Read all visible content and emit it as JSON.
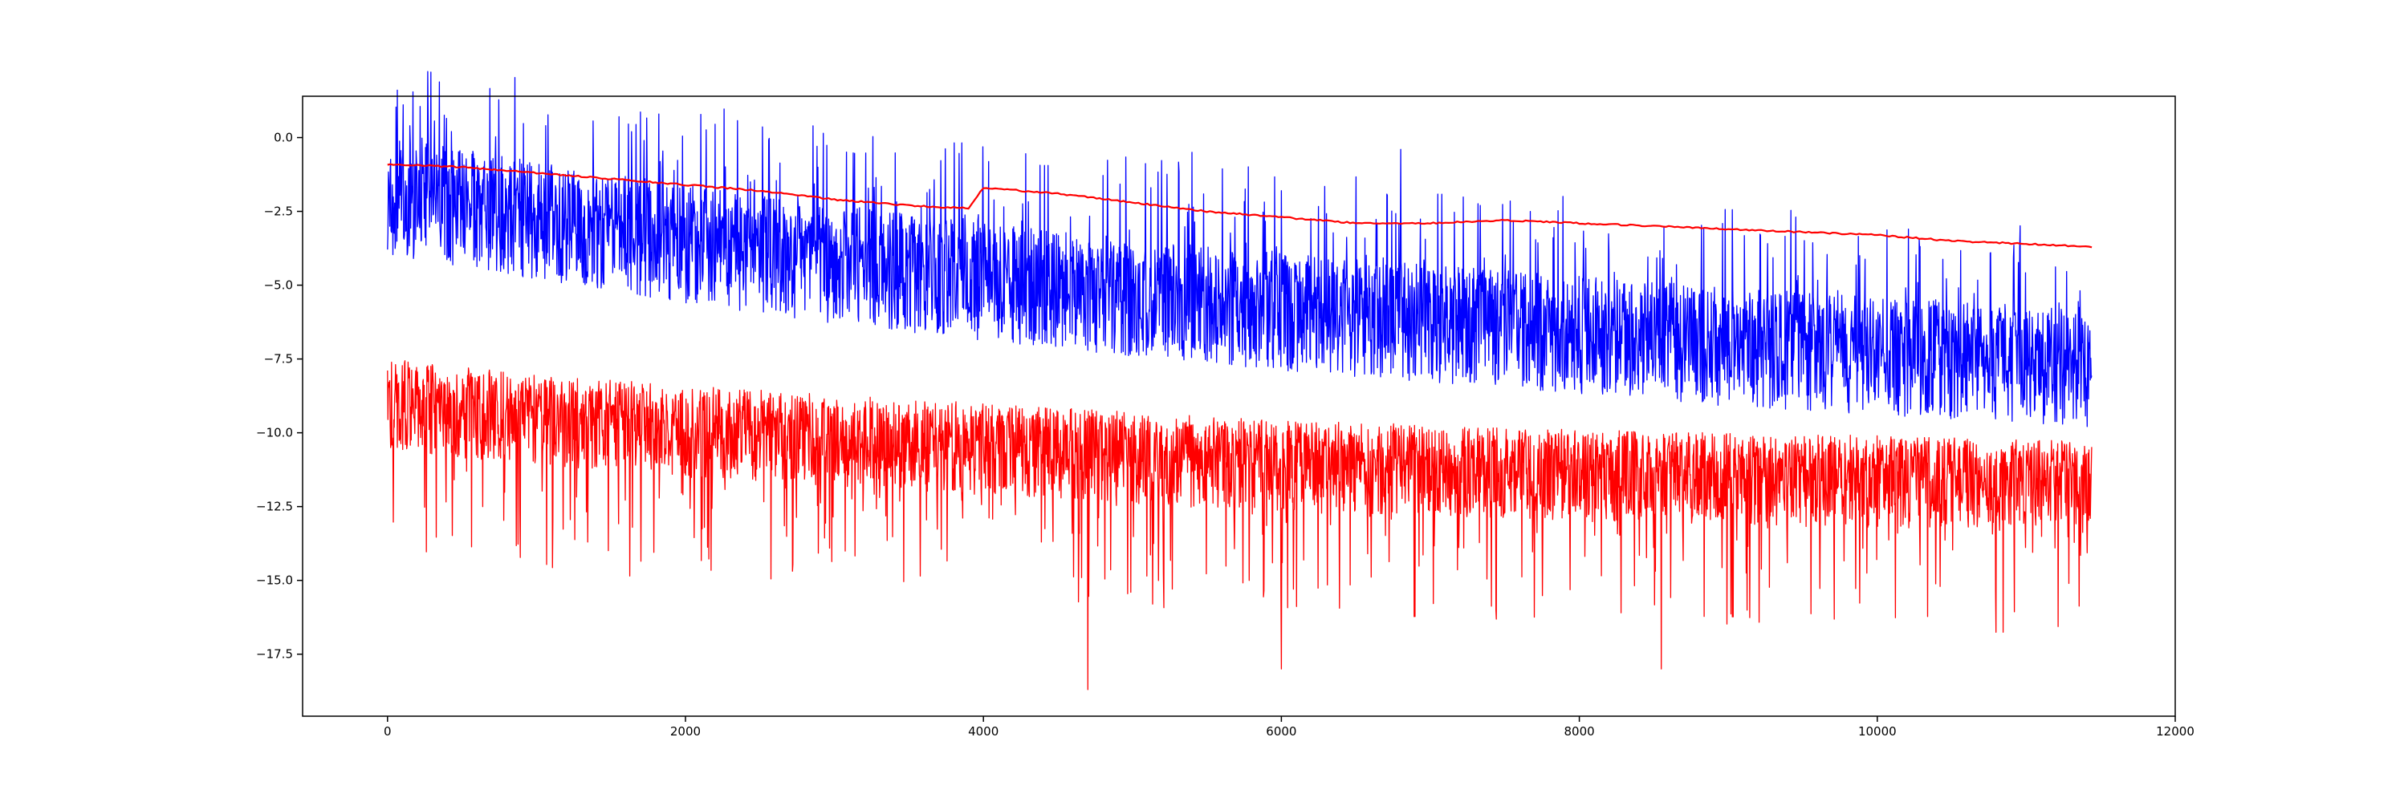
{
  "chart_data": {
    "type": "line",
    "title": "",
    "xlabel": "",
    "ylabel": "",
    "xlim": [
      -570,
      12000
    ],
    "ylim": [
      -19.6,
      1.4
    ],
    "grid": false,
    "legend": "none",
    "x_ticks": [
      0,
      2000,
      4000,
      6000,
      8000,
      10000,
      12000
    ],
    "x_tick_labels": [
      "0",
      "2000",
      "4000",
      "6000",
      "8000",
      "10000",
      "12000"
    ],
    "y_ticks": [
      0.0,
      -2.5,
      -5.0,
      -7.5,
      -10.0,
      -12.5,
      -15.0,
      -17.5
    ],
    "y_tick_labels": [
      "0.0",
      "−2.5",
      "−5.0",
      "−7.5",
      "−10.0",
      "−12.5",
      "−15.0",
      "−17.5"
    ],
    "series": [
      {
        "color": "#0000ff",
        "style": "noisy-line",
        "x_range": [
          0,
          11440
        ],
        "center_trend": {
          "x": [
            0,
            1000,
            2000,
            3000,
            4000,
            5000,
            6000,
            7000,
            8000,
            9000,
            10000,
            11440
          ],
          "y": [
            -1.8,
            -2.6,
            -3.4,
            -4.1,
            -4.7,
            -5.2,
            -5.7,
            -6.1,
            -6.5,
            -6.9,
            -7.2,
            -7.6
          ]
        },
        "band_up": 1.8,
        "band_down": 2.2,
        "spike_up_max": 4.0,
        "notable_points": [
          {
            "x": 150,
            "y": 0.4
          },
          {
            "x": 5400,
            "y": -0.5
          },
          {
            "x": 6800,
            "y": -0.4
          }
        ]
      },
      {
        "color": "#ff0000",
        "style": "noisy-line",
        "x_range": [
          0,
          11440
        ],
        "center_trend": {
          "x": [
            0,
            1000,
            2000,
            3000,
            4000,
            5000,
            6000,
            7000,
            8000,
            9000,
            10000,
            11440
          ],
          "y": [
            -8.8,
            -9.3,
            -9.7,
            -10.0,
            -10.3,
            -10.6,
            -10.9,
            -11.0,
            -11.2,
            -11.3,
            -11.4,
            -11.6
          ]
        },
        "band_up": 1.3,
        "band_down": 1.8,
        "spike_down_max": 5.0,
        "notable_points": [
          {
            "x": 4700,
            "y": -18.7
          },
          {
            "x": 6000,
            "y": -18.0
          },
          {
            "x": 8550,
            "y": -18.0
          }
        ]
      },
      {
        "color": "#ff0000",
        "style": "smooth-line",
        "x": [
          0,
          500,
          1000,
          1500,
          2000,
          2500,
          3000,
          3500,
          3900,
          4000,
          4500,
          5000,
          5500,
          6000,
          6500,
          7000,
          7500,
          8000,
          8500,
          9000,
          9500,
          10000,
          10500,
          11000,
          11440
        ],
        "y": [
          -0.9,
          -1.0,
          -1.2,
          -1.4,
          -1.6,
          -1.8,
          -2.1,
          -2.3,
          -2.4,
          -1.7,
          -1.9,
          -2.2,
          -2.5,
          -2.7,
          -2.9,
          -2.9,
          -2.8,
          -2.9,
          -3.0,
          -3.1,
          -3.2,
          -3.3,
          -3.5,
          -3.6,
          -3.7
        ]
      }
    ]
  }
}
